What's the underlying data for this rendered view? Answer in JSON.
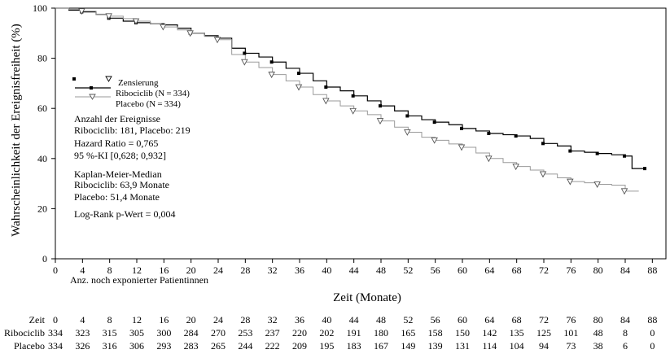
{
  "chart_data": {
    "type": "line",
    "subtype": "kaplan-meier",
    "xlabel": "Zeit (Monate)",
    "ylabel": "Wahrscheinlichkeit der Ereignisfreiheit (%)",
    "xlim": [
      0,
      90
    ],
    "ylim": [
      0,
      100
    ],
    "xticks": [
      0,
      4,
      8,
      12,
      16,
      20,
      24,
      28,
      32,
      36,
      40,
      44,
      48,
      52,
      56,
      60,
      64,
      68,
      72,
      76,
      80,
      84,
      88
    ],
    "yticks": [
      0,
      20,
      40,
      60,
      80,
      100
    ],
    "grid": false,
    "legend_position": "left-middle",
    "legend": {
      "censor_label": "Zensierung",
      "entries": [
        "Ribociclib (N = 334)",
        "Placebo (N = 334)"
      ]
    },
    "annotations": [
      "Anzahl der Ereignisse",
      "Ribociclib:  181, Placebo:  219",
      "Hazard  Ratio  = 0,765",
      "95 %-KI [0,628;  0,932]",
      "Kaplan-Meier-Median",
      "Ribociclib:   63,9  Monate",
      "Placebo:  51,4 Monate",
      "Log-Rank  p-Wert = 0,004"
    ],
    "series": [
      {
        "name": "Ribociclib (N = 334)",
        "color": "#000000",
        "marker": "filled-square",
        "x": [
          0,
          2,
          4,
          6,
          8,
          10,
          12,
          14,
          16,
          18,
          20,
          22,
          24,
          26,
          28,
          30,
          32,
          34,
          36,
          38,
          40,
          42,
          44,
          46,
          48,
          50,
          52,
          54,
          56,
          58,
          60,
          62,
          64,
          66,
          68,
          70,
          72,
          74,
          76,
          78,
          80,
          82,
          84,
          85,
          87
        ],
        "y": [
          100,
          99.2,
          98.5,
          97.5,
          96,
          94.8,
          94.2,
          93.8,
          93.3,
          92,
          90,
          89,
          88,
          84,
          82,
          80.5,
          78.5,
          76,
          74,
          71,
          68.5,
          67,
          65,
          63,
          61,
          59,
          57,
          55.5,
          54.5,
          53.5,
          52,
          51,
          50,
          49.5,
          49,
          48,
          46,
          45,
          43,
          42.5,
          42,
          41.5,
          41,
          36,
          36
        ]
      },
      {
        "name": "Placebo (N = 334)",
        "color": "#9a9a9a",
        "marker": "open-triangle-down",
        "x": [
          0,
          2,
          4,
          6,
          8,
          10,
          12,
          14,
          16,
          18,
          20,
          22,
          24,
          26,
          28,
          30,
          32,
          34,
          36,
          38,
          40,
          42,
          44,
          46,
          48,
          50,
          52,
          54,
          56,
          58,
          60,
          62,
          64,
          66,
          68,
          70,
          72,
          74,
          76,
          78,
          80,
          82,
          84,
          86
        ],
        "y": [
          100,
          99.5,
          98.8,
          97.6,
          96.8,
          95.8,
          94.8,
          93.8,
          92.5,
          91.3,
          90,
          88.7,
          87.4,
          81.5,
          78.5,
          76.3,
          73.5,
          71,
          68.5,
          65.5,
          63,
          61,
          59,
          57.5,
          55,
          52.5,
          50.5,
          48.5,
          47.3,
          45.8,
          44.5,
          42.2,
          40,
          38.4,
          36.8,
          35.4,
          33.8,
          32.3,
          30.8,
          30.3,
          29.7,
          29.4,
          27,
          27
        ]
      }
    ]
  },
  "risk_table": {
    "title": "Anz. noch exponierter Patientinnen",
    "row_label_time": "Zeit",
    "times": [
      "0",
      "4",
      "8",
      "12",
      "16",
      "20",
      "24",
      "28",
      "32",
      "36",
      "40",
      "44",
      "48",
      "52",
      "56",
      "60",
      "64",
      "68",
      "72",
      "76",
      "80",
      "84",
      "88"
    ],
    "rows": [
      {
        "label": "Ribociclib",
        "values": [
          "334",
          "323",
          "315",
          "305",
          "300",
          "284",
          "270",
          "253",
          "237",
          "220",
          "202",
          "191",
          "180",
          "165",
          "158",
          "150",
          "142",
          "135",
          "125",
          "101",
          "48",
          "8",
          "0"
        ]
      },
      {
        "label": "Placebo",
        "values": [
          "334",
          "326",
          "316",
          "306",
          "293",
          "283",
          "265",
          "244",
          "222",
          "209",
          "195",
          "183",
          "167",
          "149",
          "139",
          "131",
          "114",
          "104",
          "94",
          "73",
          "38",
          "6",
          "0"
        ]
      }
    ]
  }
}
